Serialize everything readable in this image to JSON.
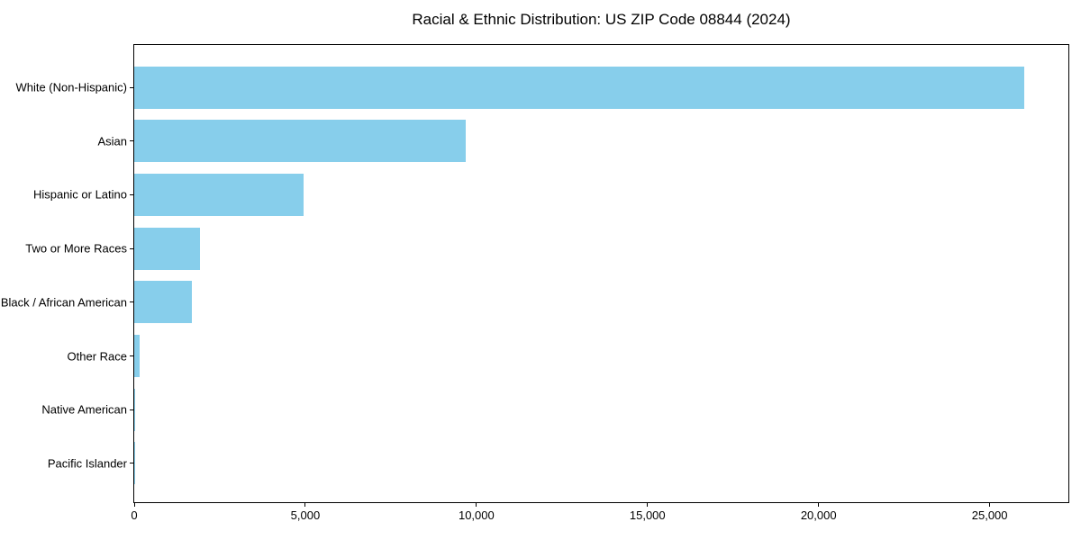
{
  "chart_data": {
    "type": "bar",
    "orientation": "horizontal",
    "title": "Racial & Ethnic Distribution: US ZIP Code 08844 (2024)",
    "categories": [
      "White (Non-Hispanic)",
      "Asian",
      "Hispanic or Latino",
      "Two or More Races",
      "Black / African American",
      "Other Race",
      "Native American",
      "Pacific Islander"
    ],
    "values": [
      26000,
      9700,
      4950,
      1925,
      1690,
      150,
      20,
      5
    ],
    "xlabel": "",
    "ylabel": "",
    "xlim": [
      0,
      27300
    ],
    "x_ticks": [
      0,
      5000,
      10000,
      15000,
      20000,
      25000
    ],
    "x_tick_labels": [
      "0",
      "5,000",
      "10,000",
      "15,000",
      "20,000",
      "25,000"
    ],
    "grid": false,
    "legend": "none",
    "bar_color": "#87CEEB",
    "axis_color": "#000000",
    "background_color": "#ffffff"
  }
}
